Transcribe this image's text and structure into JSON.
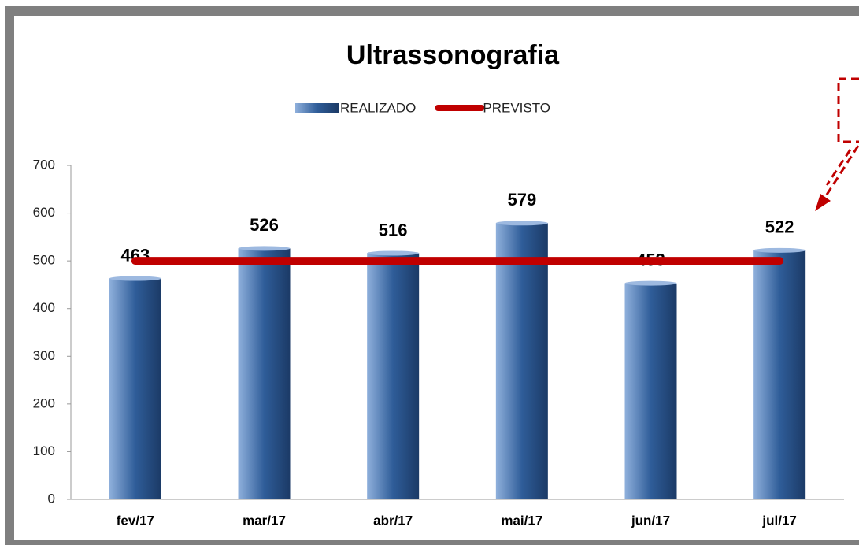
{
  "chart_data": {
    "type": "bar",
    "title": "Ultrassonografia",
    "categories": [
      "fev/17",
      "mar/17",
      "abr/17",
      "mai/17",
      "jun/17",
      "jul/17"
    ],
    "series": [
      {
        "name": "REALIZADO",
        "type": "bar",
        "color": "#2f5d99",
        "values": [
          463,
          526,
          516,
          579,
          453,
          522
        ]
      },
      {
        "name": "PREVISTO",
        "type": "line",
        "color": "#c00000",
        "values": [
          500,
          500,
          500,
          500,
          500,
          500
        ]
      }
    ],
    "ylim": [
      0,
      700
    ],
    "yticks": [
      0,
      100,
      200,
      300,
      400,
      500,
      600,
      700
    ],
    "grid": false,
    "legend": "top"
  }
}
